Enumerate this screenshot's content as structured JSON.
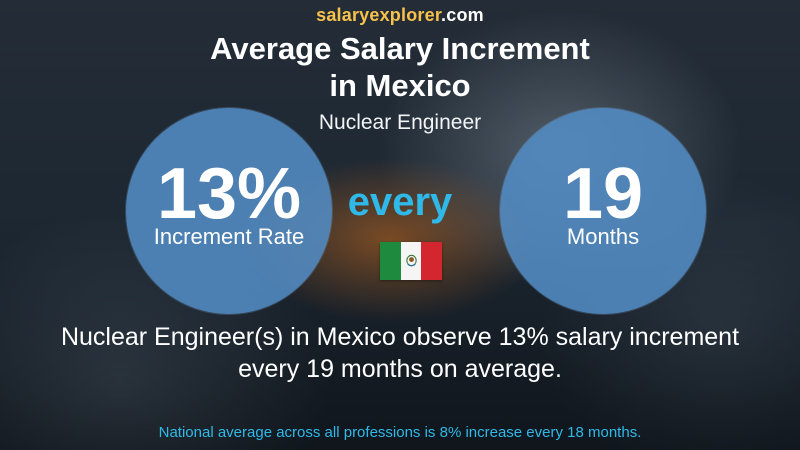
{
  "brand": {
    "part1": "salary",
    "part2": "explorer",
    "part3": ".com"
  },
  "title": {
    "line1": "Average Salary Increment",
    "line2": "in Mexico"
  },
  "subtitle": "Nuclear Engineer",
  "increment": {
    "value": "13%",
    "label": "Increment Rate"
  },
  "connector": "every",
  "period": {
    "value": "19",
    "label": "Months"
  },
  "flag": {
    "icon": "mexico-flag-icon",
    "colors": [
      "#1e8a3e",
      "#f5f5f5",
      "#d4262f"
    ]
  },
  "description": {
    "line1": "Nuclear Engineer(s) in Mexico observe 13% salary increment",
    "line2": "every 19 months on average."
  },
  "footer": "National average across all professions is 8% increase every 18 months.",
  "colors": {
    "accent": "#2fb9e8",
    "circle": "#538cc4",
    "brand": "#f7c14b"
  }
}
